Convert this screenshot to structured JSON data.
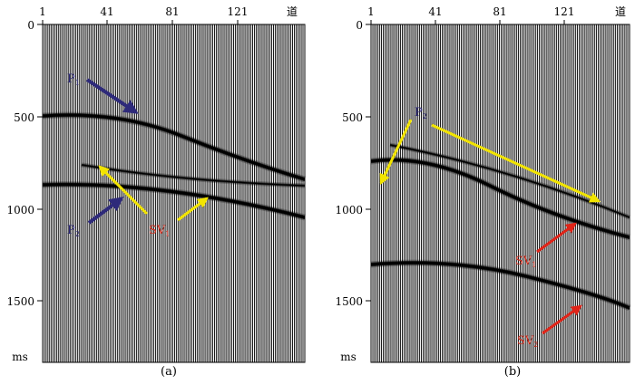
{
  "panels": [
    {
      "caption": "(a)",
      "trace_ticks": [
        "1",
        "41",
        "81",
        "121",
        "道"
      ],
      "time_ticks": [
        "0",
        "500",
        "1000",
        "1500"
      ],
      "unit": "ms",
      "labels": [
        {
          "main": "P",
          "sub": "1",
          "color": "#2e2a7a"
        },
        {
          "main": "P",
          "sub": "2",
          "color": "#2e2a7a"
        },
        {
          "main": "SV",
          "sub": "1",
          "color": "#d12a1a"
        }
      ]
    },
    {
      "caption": "(b)",
      "trace_ticks": [
        "1",
        "41",
        "81",
        "121",
        "道"
      ],
      "time_ticks": [
        "0",
        "500",
        "1000",
        "1500"
      ],
      "unit": "ms",
      "labels": [
        {
          "main": "P",
          "sub": "2",
          "color": "#2e2a7a"
        },
        {
          "main": "SV",
          "sub": "1",
          "color": "#d12a1a"
        },
        {
          "main": "SV",
          "sub": "2",
          "color": "#d12a1a"
        }
      ]
    }
  ],
  "colors": {
    "navy_arrow": "#2e2a7a",
    "yellow_arrow": "#f2e400",
    "red_arrow": "#e02418",
    "trace": "#000000"
  }
}
